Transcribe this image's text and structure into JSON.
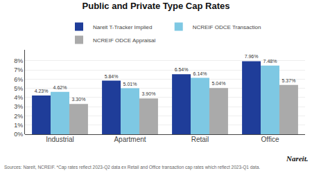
{
  "chart_data": {
    "type": "bar",
    "title": "Public and Private Type Cap Rates",
    "categories": [
      "Industrial",
      "Apartment",
      "Retail",
      "Office"
    ],
    "series": [
      {
        "name": "Nareit T-Tracker Implied",
        "color": "#1f3d99",
        "values": [
          4.23,
          5.84,
          6.54,
          7.96
        ],
        "value_labels": [
          "4.23%",
          "5.84%",
          "6.54%",
          "7.96%"
        ]
      },
      {
        "name": "NCREIF ODCE Transaction",
        "color": "#7ec8e3",
        "values": [
          4.62,
          5.01,
          6.14,
          7.48
        ],
        "value_labels": [
          "4.62%",
          "5.01%",
          "6.14%",
          "7.48%"
        ]
      },
      {
        "name": "NCREIF ODCE Appraisal",
        "color": "#aaaaaa",
        "values": [
          3.3,
          3.9,
          5.04,
          5.37
        ],
        "value_labels": [
          "3.30%",
          "3.90%",
          "5.04%",
          "5.37%"
        ]
      }
    ],
    "ylim": [
      0,
      9.2
    ],
    "yticks": [
      {
        "value": 0,
        "label": "0%"
      },
      {
        "value": 1,
        "label": "1%"
      },
      {
        "value": 2,
        "label": "2%"
      },
      {
        "value": 3,
        "label": "3%"
      },
      {
        "value": 4,
        "label": "4%"
      },
      {
        "value": 5,
        "label": "5%"
      },
      {
        "value": 6,
        "label": "6%"
      },
      {
        "value": 7,
        "label": "7%"
      },
      {
        "value": 8,
        "label": "8%"
      }
    ],
    "grid": true,
    "legend": "top",
    "data_labels": true,
    "annotations": [
      "Sources: Nareit, NCREIF. *Cap rates reflect 2023-Q2 data ex Retail and Office transaction cap rates which reflect 2023-Q1 data.",
      "Nareit."
    ]
  }
}
